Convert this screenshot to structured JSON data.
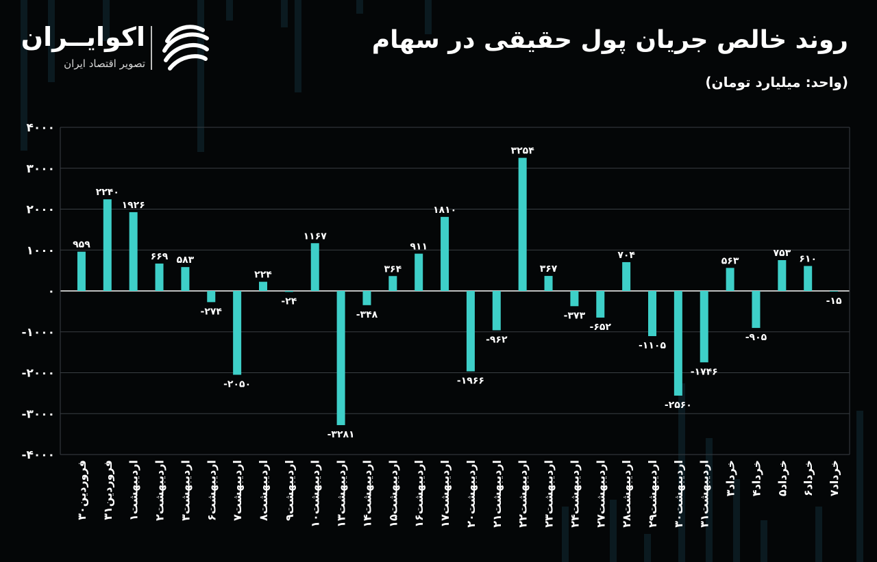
{
  "header": {
    "title": "روند خالص جریان پول حقیقی در سهام",
    "subtitle": "(واحد: میلیارد تومان)"
  },
  "brand": {
    "name": "اکوایــران",
    "tagline": "تصویر اقتصاد ایران",
    "logo_icon": "swirl-stripes-icon"
  },
  "colors": {
    "background": "#040607",
    "bar": "#3ecfc8",
    "grid": "#3a3f44",
    "text": "#ffffff"
  },
  "chart_data": {
    "type": "bar",
    "title": "روند خالص جریان پول حقیقی در سهام",
    "ylabel": "",
    "xlabel": "",
    "ylim": [
      -4000,
      4000
    ],
    "yticks": [
      4000,
      3000,
      2000,
      1000,
      0,
      -1000,
      -2000,
      -3000,
      -4000
    ],
    "ytick_labels": [
      "۴۰۰۰",
      "۳۰۰۰",
      "۲۰۰۰",
      "۱۰۰۰",
      "۰",
      "-۱۰۰۰",
      "-۲۰۰۰",
      "-۳۰۰۰",
      "-۴۰۰۰"
    ],
    "grid": true,
    "categories": [
      "۳۰فروردین",
      "۳۱فروردین",
      "۱اردیبهشت",
      "۲اردیبهشت",
      "۳اردیبهشت",
      "۶اردیبهشت",
      "۷اردیبهشت",
      "۸اردیبهشت",
      "۹اردیبهشت",
      "۱۰اردیبهشت",
      "۱۳اردیبهشت",
      "۱۴اردیبهشت",
      "۱۵اردیبهشت",
      "۱۶اردیبهشت",
      "۱۷اردیبهشت",
      "۲۰اردیبهشت",
      "۲۱اردیبهشت",
      "۲۲اردیبهشت",
      "۲۳اردیبهشت",
      "۲۴اردیبهشت",
      "۲۷اردیبهشت",
      "۲۸اردیبهشت",
      "۲۹اردیبهشت",
      "۳۰اردیبهشت",
      "۳۱اردیبهشت",
      "۳خرداد",
      "۴خرداد",
      "۵خرداد",
      "۶خرداد",
      "۷خرداد"
    ],
    "values": [
      959,
      2240,
      1926,
      669,
      583,
      -274,
      -2050,
      224,
      -24,
      1167,
      -3281,
      -348,
      364,
      911,
      1810,
      -1966,
      -962,
      3254,
      367,
      -373,
      -652,
      704,
      -1105,
      -2560,
      -1746,
      563,
      -905,
      753,
      610,
      -15
    ],
    "data_labels": [
      "۹۵۹",
      "۲۲۴۰",
      "۱۹۲۶",
      "۶۶۹",
      "۵۸۳",
      "-۲۷۴",
      "-۲۰۵۰",
      "۲۲۴",
      "-۲۴",
      "۱۱۶۷",
      "-۳۲۸۱",
      "-۳۴۸",
      "۳۶۴",
      "۹۱۱",
      "۱۸۱۰",
      "-۱۹۶۶",
      "-۹۶۲",
      "۳۲۵۴",
      "۳۶۷",
      "-۳۷۳",
      "-۶۵۲",
      "۷۰۴",
      "-۱۱۰۵",
      "-۲۵۶۰",
      "-۱۷۴۶",
      "۵۶۳",
      "-۹۰۵",
      "۷۵۳",
      "۶۱۰",
      "-۱۵"
    ]
  }
}
